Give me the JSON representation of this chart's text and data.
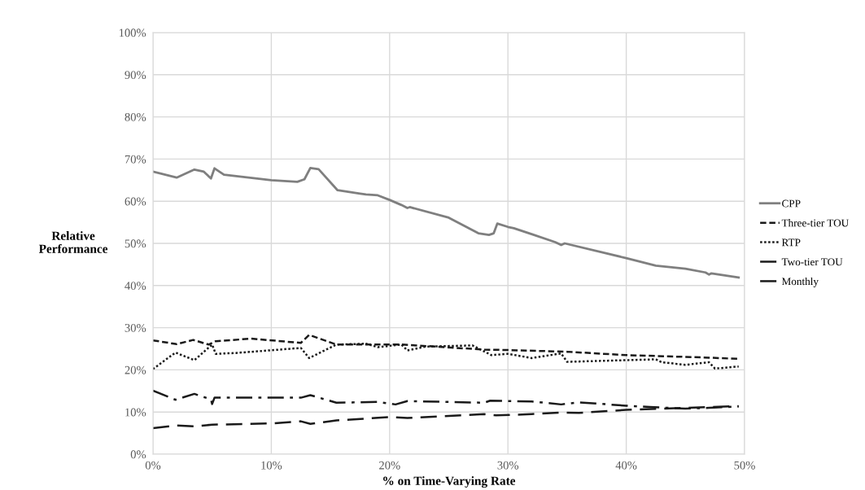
{
  "chart_data": {
    "type": "line",
    "xlabel": "% on Time-Varying Rate",
    "ylabel": "Relative Performance",
    "xlim": [
      0,
      50
    ],
    "ylim": [
      0,
      100
    ],
    "xticks": [
      {
        "value": 0,
        "label": "0%"
      },
      {
        "value": 10,
        "label": "10%"
      },
      {
        "value": 20,
        "label": "20%"
      },
      {
        "value": 30,
        "label": "30%"
      },
      {
        "value": 40,
        "label": "40%"
      },
      {
        "value": 50,
        "label": "50%"
      }
    ],
    "yticks": [
      {
        "value": 0,
        "label": "0%"
      },
      {
        "value": 10,
        "label": "10%"
      },
      {
        "value": 20,
        "label": "20%"
      },
      {
        "value": 30,
        "label": "30%"
      },
      {
        "value": 40,
        "label": "40%"
      },
      {
        "value": 50,
        "label": "50%"
      },
      {
        "value": 60,
        "label": "60%"
      },
      {
        "value": 70,
        "label": "70%"
      },
      {
        "value": 80,
        "label": "80%"
      },
      {
        "value": 90,
        "label": "90%"
      },
      {
        "value": 100,
        "label": "100%"
      }
    ],
    "grid": true,
    "legend": "right",
    "series": [
      {
        "name": "CPP",
        "color": "#7f7f7f",
        "line_style": "solid",
        "x": [
          0,
          2,
          3.5,
          4.3,
          4.9,
          5.2,
          6,
          10,
          12.2,
          12.8,
          13.3,
          14,
          15.6,
          17.5,
          18,
          19,
          20,
          21,
          21.5,
          21.7,
          25,
          27.5,
          28.4,
          28.8,
          29.1,
          30,
          30.5,
          32,
          34,
          34.5,
          34.8,
          40,
          42.5,
          45,
          46.7,
          47,
          47.2,
          49.5
        ],
        "values": [
          67.0,
          65.6,
          67.5,
          67.0,
          65.4,
          67.8,
          66.3,
          65.0,
          64.6,
          65.2,
          67.9,
          67.6,
          62.6,
          61.8,
          61.6,
          61.4,
          60.3,
          59.1,
          58.4,
          58.6,
          56.1,
          52.4,
          52.0,
          52.4,
          54.7,
          53.9,
          53.6,
          52.2,
          50.3,
          49.6,
          50.0,
          46.5,
          44.7,
          44.0,
          43.1,
          42.6,
          42.9,
          41.9
        ]
      },
      {
        "name": "Three-tier TOU",
        "color": "#1a1a1a",
        "line_style": "dashed",
        "x": [
          0,
          2,
          3.4,
          4.7,
          5.3,
          8.3,
          12.5,
          13.2,
          15.5,
          19,
          21,
          24,
          28,
          30,
          35,
          40,
          47,
          49.5
        ],
        "values": [
          27.0,
          26.1,
          27.1,
          26.0,
          26.8,
          27.4,
          26.4,
          28.3,
          26.0,
          26.0,
          26.0,
          25.5,
          24.8,
          24.7,
          24.3,
          23.5,
          22.9,
          22.6
        ]
      },
      {
        "name": "RTP",
        "color": "#1a1a1a",
        "line_style": "dotted",
        "x": [
          0,
          1.9,
          3.5,
          5,
          5.3,
          7,
          12.5,
          13.2,
          15.5,
          18,
          19,
          21,
          21.5,
          23,
          27,
          28.6,
          30,
          32,
          34.5,
          35,
          40,
          42.5,
          43,
          45,
          47,
          47.5,
          49.5
        ],
        "values": [
          20.2,
          24.1,
          22.3,
          26.0,
          23.8,
          24.0,
          25.2,
          22.8,
          26.0,
          26.2,
          25.4,
          26.0,
          24.6,
          25.5,
          25.8,
          23.5,
          23.8,
          22.8,
          23.9,
          21.9,
          22.3,
          22.5,
          21.8,
          21.2,
          21.8,
          20.3,
          20.8
        ]
      },
      {
        "name": "Two-tier TOU",
        "color": "#1a1a1a",
        "line_style": "dashdot",
        "x": [
          0,
          1.9,
          3.5,
          4.9,
          5.0,
          5.2,
          12.5,
          13.3,
          15.5,
          19,
          20.5,
          21.5,
          28,
          28.5,
          32,
          34.5,
          36,
          40,
          42,
          45,
          47,
          49.5
        ],
        "values": [
          15.1,
          12.9,
          14.3,
          13.0,
          11.9,
          13.4,
          13.4,
          14.0,
          12.2,
          12.4,
          11.8,
          12.6,
          12.2,
          12.7,
          12.5,
          11.8,
          12.3,
          11.5,
          11.2,
          10.8,
          11.0,
          11.3
        ]
      },
      {
        "name": "Monthly",
        "color": "#1a1a1a",
        "line_style": "longdash",
        "x": [
          0,
          2,
          3.5,
          5,
          10,
          12.5,
          13.3,
          15.5,
          20,
          21.5,
          28,
          29,
          32,
          34.5,
          36,
          40,
          45,
          49.5
        ],
        "values": [
          6.2,
          6.8,
          6.6,
          7.0,
          7.3,
          7.8,
          7.2,
          8.0,
          8.8,
          8.6,
          9.5,
          9.2,
          9.5,
          9.9,
          9.8,
          10.5,
          11.0,
          11.4
        ]
      }
    ]
  }
}
